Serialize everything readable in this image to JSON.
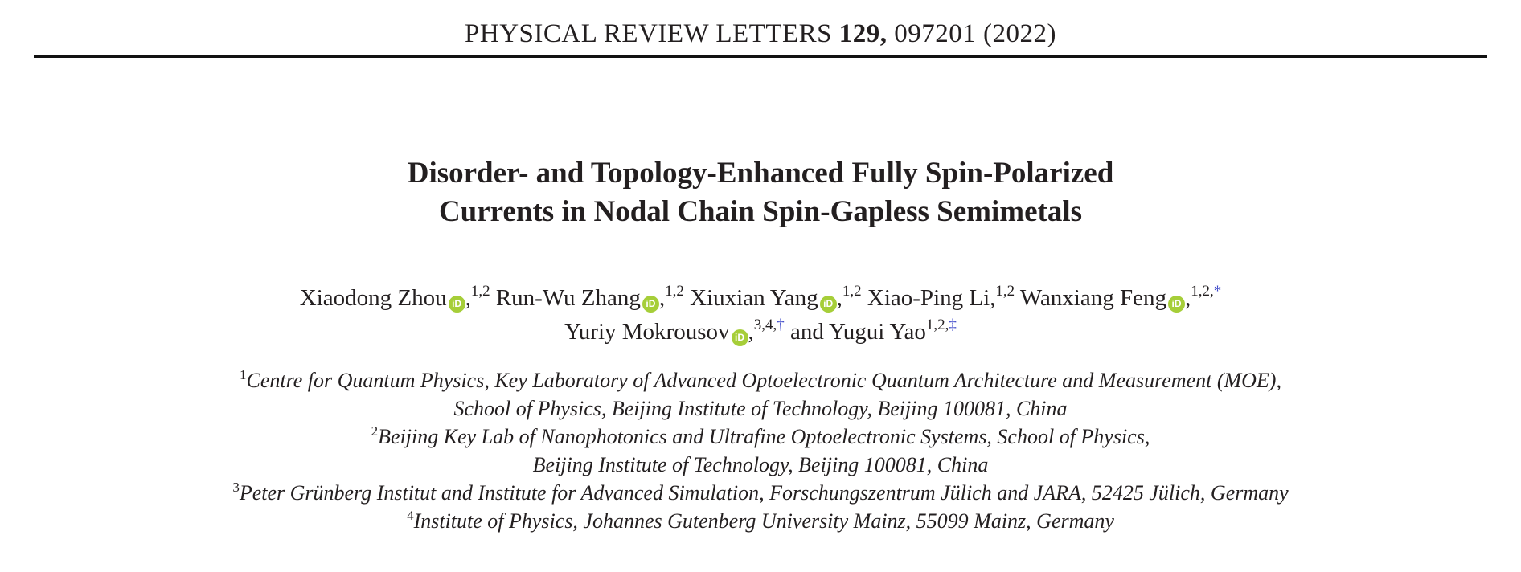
{
  "colors": {
    "text": "#231f20",
    "orcid_green": "#a6ce39",
    "link_blue": "#3b46c8"
  },
  "journal": {
    "name": "PHYSICAL REVIEW LETTERS",
    "volume": "129,",
    "article_code": "097201 (2022)"
  },
  "title": {
    "line1": "Disorder- and Topology-Enhanced Fully Spin-Polarized",
    "line2": "Currents in Nodal Chain Spin-Gapless Semimetals"
  },
  "orcid_icon_text": "iD",
  "authors": {
    "line1": [
      {
        "name": "Xiaodong Zhou",
        "orcid": true,
        "comma": true,
        "sup": "1,2"
      },
      {
        "name": "Run-Wu Zhang",
        "orcid": true,
        "comma": true,
        "sup": "1,2"
      },
      {
        "name": "Xiuxian Yang",
        "orcid": true,
        "comma": true,
        "sup": "1,2"
      },
      {
        "name": "Xiao-Ping Li",
        "orcid": false,
        "comma": true,
        "sup": "1,2"
      },
      {
        "name": "Wanxiang Feng",
        "orcid": true,
        "comma": true,
        "sup": "1,2,",
        "sym": "*"
      }
    ],
    "line2": [
      {
        "name": "Yuriy Mokrousov",
        "orcid": true,
        "comma": true,
        "sup": "3,4,",
        "sym": "†"
      },
      {
        "prefix": "and ",
        "name": "Yugui Yao",
        "orcid": false,
        "comma": false,
        "sup": "1,2,",
        "sym": "‡"
      }
    ]
  },
  "affiliations": [
    {
      "sup": "1",
      "lines": [
        "Centre for Quantum Physics, Key Laboratory of Advanced Optoelectronic Quantum Architecture and Measurement (MOE),",
        "School of Physics, Beijing Institute of Technology, Beijing 100081, China"
      ]
    },
    {
      "sup": "2",
      "lines": [
        "Beijing Key Lab of Nanophotonics and Ultrafine Optoelectronic Systems, School of Physics,",
        "Beijing Institute of Technology, Beijing 100081, China"
      ]
    },
    {
      "sup": "3",
      "lines": [
        "Peter Grünberg Institut and Institute for Advanced Simulation, Forschungszentrum Jülich and JARA, 52425 Jülich, Germany"
      ]
    },
    {
      "sup": "4",
      "lines": [
        "Institute of Physics, Johannes Gutenberg University Mainz, 55099 Mainz, Germany"
      ]
    }
  ]
}
